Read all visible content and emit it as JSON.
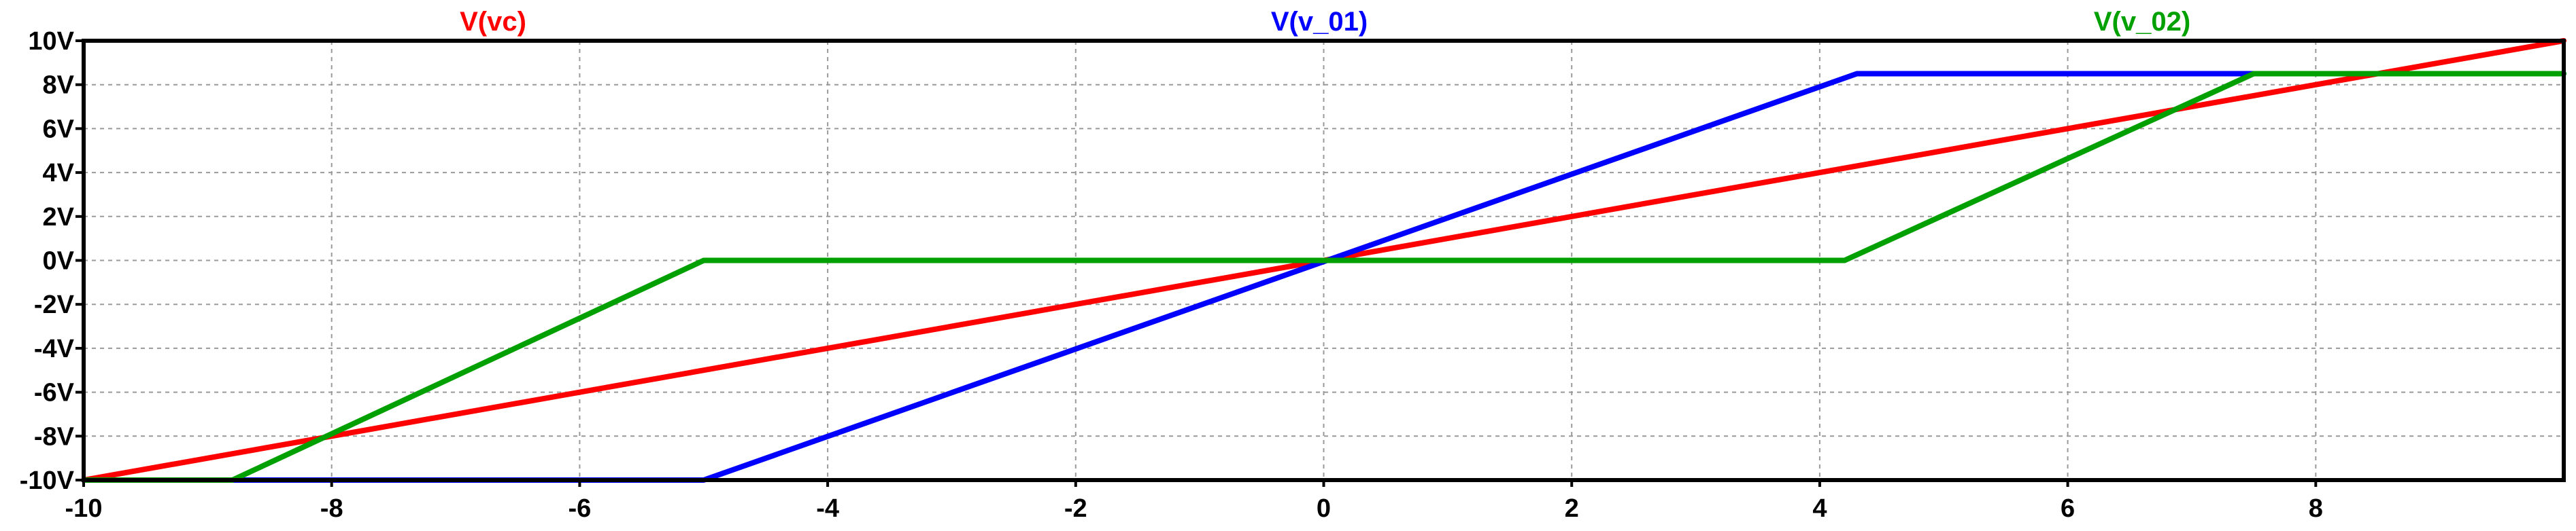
{
  "chart_data": {
    "type": "line",
    "title": "",
    "xlabel": "",
    "ylabel": "",
    "xlim": [
      -10,
      10
    ],
    "ylim": [
      -10,
      10
    ],
    "grid": true,
    "legend_placement": "top",
    "x_ticks": [
      -10,
      -8,
      -6,
      -4,
      -2,
      0,
      2,
      4,
      6,
      8
    ],
    "x_tick_labels": [
      "-10",
      "-8",
      "-6",
      "-4",
      "-2",
      "0",
      "2",
      "4",
      "6",
      "8"
    ],
    "y_ticks": [
      10,
      8,
      6,
      4,
      2,
      0,
      -2,
      -4,
      -6,
      -8,
      -10
    ],
    "y_tick_labels": [
      "10V",
      "8V",
      "6V",
      "4V",
      "2V",
      "0V",
      "-2V",
      "-4V",
      "-6V",
      "-8V",
      "-10V"
    ],
    "series": [
      {
        "name": "V(vc)",
        "color": "#ff0000",
        "x": [
          -10,
          10
        ],
        "y": [
          -10,
          10
        ]
      },
      {
        "name": "V(v_01)",
        "color": "#0000ff",
        "x": [
          -10,
          -5,
          4.3,
          10
        ],
        "y": [
          -10,
          -10,
          8.5,
          8.5
        ]
      },
      {
        "name": "V(v_02)",
        "color": "#00a000",
        "x": [
          -10,
          -8.8,
          -5,
          4.2,
          7.5,
          10
        ],
        "y": [
          -10,
          -10,
          0,
          0,
          8.5,
          8.5
        ]
      }
    ]
  }
}
